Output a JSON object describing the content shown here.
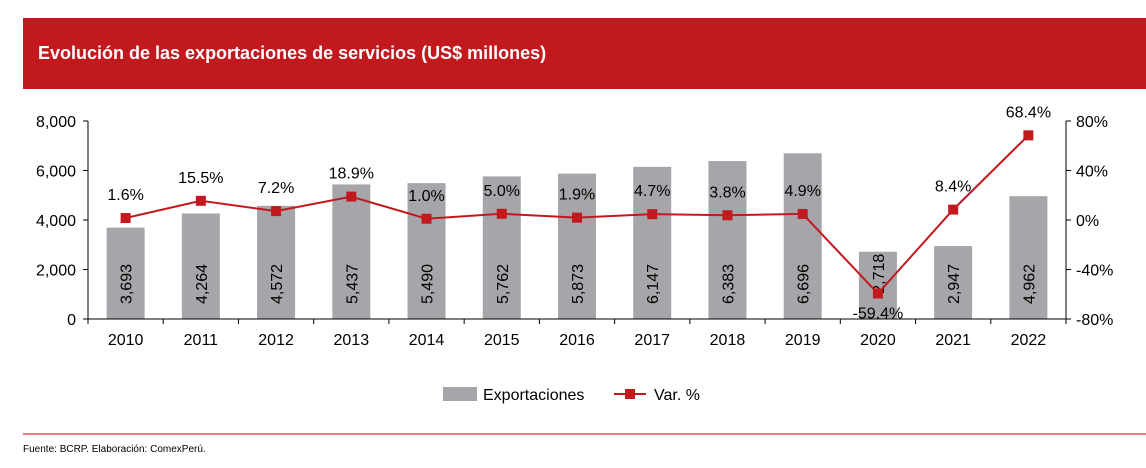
{
  "header": {
    "title": "Evolución de las exportaciones de servicios (US$ millones)"
  },
  "source": "Fuente: BCRP. Elaboración: ComexPerú.",
  "colors": {
    "header_bg": "#c1191e",
    "bars": "#a6a6aa",
    "line": "#c1191e",
    "footer_line": "#e07f81"
  },
  "chart_data": {
    "type": "bar",
    "title": "Evolución de las exportaciones de servicios (US$ millones)",
    "categories": [
      "2010",
      "2011",
      "2012",
      "2013",
      "2014",
      "2015",
      "2016",
      "2017",
      "2018",
      "2019",
      "2020",
      "2021",
      "2022"
    ],
    "series": [
      {
        "name": "Exportaciones",
        "type": "bar",
        "axis": "left",
        "values": [
          3693,
          4264,
          4572,
          5437,
          5490,
          5762,
          5873,
          6147,
          6383,
          6696,
          2718,
          2947,
          4962
        ],
        "labels": [
          "3,693",
          "4,264",
          "4,572",
          "5,437",
          "5,490",
          "5,762",
          "5,873",
          "6,147",
          "6,383",
          "6,696",
          "2,718",
          "2,947",
          "4,962"
        ]
      },
      {
        "name": "Var. %",
        "type": "line",
        "axis": "right",
        "values": [
          1.6,
          15.5,
          7.2,
          18.9,
          1.0,
          5.0,
          1.9,
          4.7,
          3.8,
          4.9,
          -59.4,
          8.4,
          68.4
        ],
        "labels": [
          "1.6%",
          "15.5%",
          "7.2%",
          "18.9%",
          "1.0%",
          "5.0%",
          "1.9%",
          "4.7%",
          "3.8%",
          "4.9%",
          "-59.4%",
          "8.4%",
          "68.4%"
        ]
      }
    ],
    "y_left": {
      "ylim": [
        0,
        8000
      ],
      "ticks": [
        0,
        2000,
        4000,
        6000,
        8000
      ],
      "tick_labels": [
        "0",
        "2,000",
        "4,000",
        "6,000",
        "8,000"
      ]
    },
    "y_right": {
      "ylim": [
        -80,
        80
      ],
      "ticks": [
        -80,
        -40,
        0,
        40,
        80
      ],
      "tick_labels": [
        "-80%",
        "-40%",
        "0%",
        "40%",
        "80%"
      ]
    },
    "grid": false,
    "legend": {
      "position": "bottom",
      "entries": [
        "Exportaciones",
        "Var. %"
      ]
    }
  }
}
